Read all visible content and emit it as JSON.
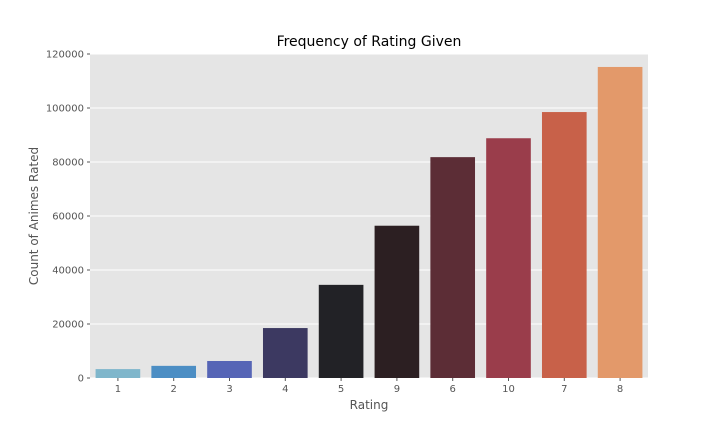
{
  "chart_data": {
    "type": "bar",
    "title": "Frequency of Rating Given",
    "xlabel": "Rating",
    "ylabel": "Count of Animes Rated",
    "categories": [
      "1",
      "2",
      "3",
      "4",
      "5",
      "9",
      "6",
      "10",
      "7",
      "8"
    ],
    "values": [
      3300,
      4500,
      6300,
      18500,
      34500,
      56400,
      81800,
      88800,
      98500,
      115200
    ],
    "colors": [
      "#7fb6cb",
      "#4c8ec4",
      "#5665b6",
      "#3c3961",
      "#222226",
      "#2c1f22",
      "#5c2d36",
      "#9a3d4b",
      "#c86149",
      "#e3996a"
    ],
    "ylim": [
      0,
      120000
    ],
    "yticks": [
      0,
      20000,
      40000,
      60000,
      80000,
      100000,
      120000
    ],
    "ytick_labels": [
      "0",
      "20000",
      "40000",
      "60000",
      "80000",
      "100000",
      "120000"
    ],
    "grid": true,
    "background": "#e5e5e5"
  }
}
